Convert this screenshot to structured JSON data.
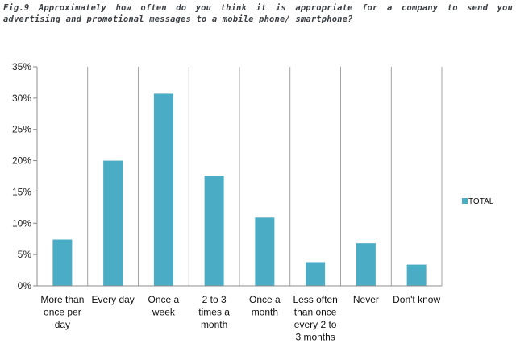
{
  "figure": {
    "title": "Fig.9 Approximately how often do you think it is appropriate for a company to send you advertising and promotional messages to a mobile phone/ smartphone?"
  },
  "colors": {
    "bar": "#4BACC6",
    "axis": "#8c8c8c",
    "grid": "#8c8c8c"
  },
  "chart_data": {
    "type": "bar",
    "title": "",
    "xlabel": "",
    "ylabel": "",
    "ylim": [
      0,
      35
    ],
    "yticks": [
      "0%",
      "5%",
      "10%",
      "15%",
      "20%",
      "25%",
      "30%",
      "35%"
    ],
    "yticks_values": [
      0,
      5,
      10,
      15,
      20,
      25,
      30,
      35
    ],
    "grid": "vertical lines between categories",
    "legend_position": "right",
    "categories": [
      [
        "More than",
        "once per",
        "day"
      ],
      [
        "Every day"
      ],
      [
        "Once a",
        "week"
      ],
      [
        "2 to 3",
        "times a",
        "month"
      ],
      [
        "Once a",
        "month"
      ],
      [
        "Less often",
        "than once",
        "every 2 to",
        "3 months"
      ],
      [
        "Never"
      ],
      [
        "Don't know"
      ]
    ],
    "series": [
      {
        "name": "TOTAL",
        "values": [
          7.4,
          20.0,
          30.7,
          17.6,
          10.9,
          3.8,
          6.8,
          3.4
        ]
      }
    ]
  }
}
